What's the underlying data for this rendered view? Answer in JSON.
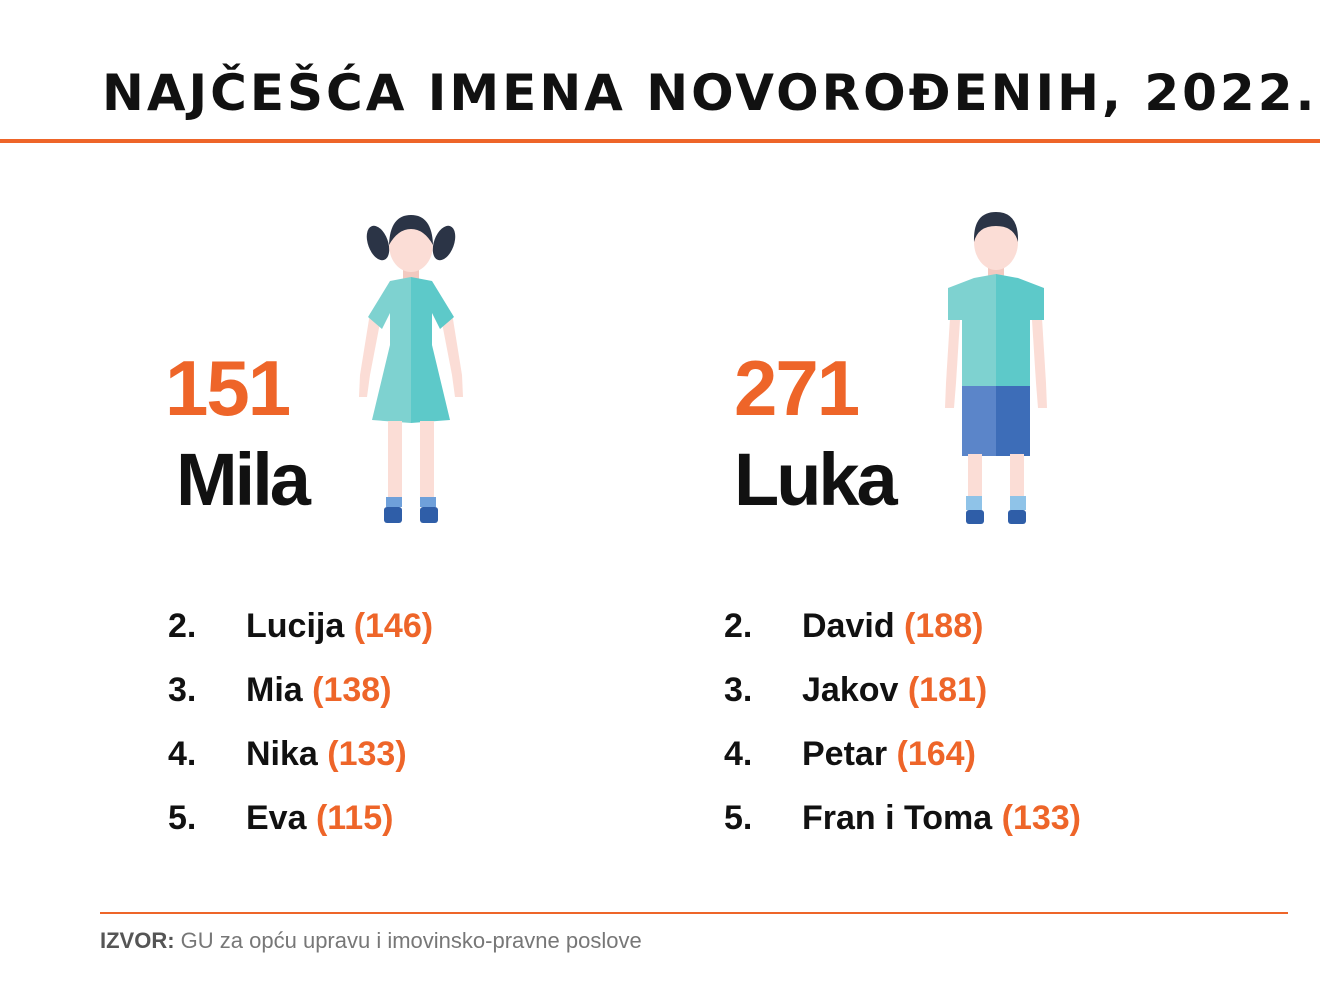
{
  "title": "NAJČEŠĆA IMENA NOVOROĐENIH, 2022.",
  "colors": {
    "accent": "#EE6529",
    "text": "#111111",
    "muted": "#777777",
    "dress_teal": "#5DC9C9",
    "shorts_blue": "#3D6DB8",
    "hair": "#2B3446",
    "skin": "#FBDDD6"
  },
  "girls": {
    "top": {
      "count": "151",
      "name": "Mila"
    },
    "icon": "girl-figure-icon",
    "list": [
      {
        "rank": "2.",
        "name": "Lucija",
        "count": "(146)"
      },
      {
        "rank": "3.",
        "name": "Mia",
        "count": "(138)"
      },
      {
        "rank": "4.",
        "name": "Nika",
        "count": "(133)"
      },
      {
        "rank": "5.",
        "name": "Eva",
        "count": "(115)"
      }
    ]
  },
  "boys": {
    "top": {
      "count": "271",
      "name": "Luka"
    },
    "icon": "boy-figure-icon",
    "list": [
      {
        "rank": "2.",
        "name": "David",
        "count": "(188)"
      },
      {
        "rank": "3.",
        "name": "Jakov",
        "count": "(181)"
      },
      {
        "rank": "4.",
        "name": "Petar",
        "count": "(164)"
      },
      {
        "rank": "5.",
        "name": "Fran i Toma",
        "count": "(133)"
      }
    ]
  },
  "source": {
    "label": "IZVOR:",
    "text": " GU za opću upravu i imovinsko-pravne poslove"
  }
}
